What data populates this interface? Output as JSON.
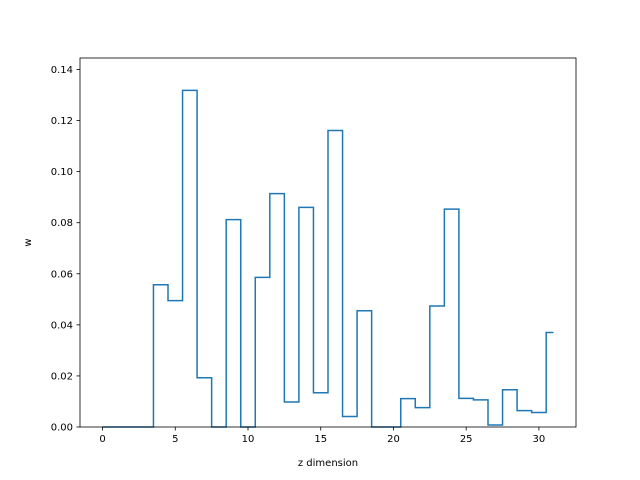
{
  "chart_data": {
    "type": "line",
    "style": "step",
    "title": "",
    "xlabel": "z dimension",
    "ylabel": "w",
    "xlim": [
      -1.55,
      32.55
    ],
    "ylim": [
      0,
      0.1445
    ],
    "xticks": [
      0,
      5,
      10,
      15,
      20,
      25,
      30
    ],
    "yticks": [
      0.0,
      0.02,
      0.04,
      0.06,
      0.08,
      0.1,
      0.12,
      0.14
    ],
    "xtick_labels": [
      "0",
      "5",
      "10",
      "15",
      "20",
      "25",
      "30"
    ],
    "ytick_labels": [
      "0.00",
      "0.02",
      "0.04",
      "0.06",
      "0.08",
      "0.10",
      "0.12",
      "0.14"
    ],
    "grid": false,
    "line_color": "#1f77b4",
    "series": [
      {
        "x": [
          0,
          1,
          2,
          3,
          4,
          5,
          6,
          7,
          8,
          9,
          10,
          11,
          12,
          13,
          14,
          15,
          16,
          17,
          18,
          19,
          20,
          21,
          22,
          23,
          24,
          25,
          26,
          27,
          28,
          29,
          30,
          31
        ],
        "values": [
          0.0,
          0.0,
          0.0,
          0.0,
          0.0557,
          0.0495,
          0.1318,
          0.0193,
          0.0,
          0.0812,
          0.0,
          0.0586,
          0.0914,
          0.0098,
          0.086,
          0.0134,
          0.1161,
          0.0041,
          0.0455,
          0.0,
          0.0,
          0.0111,
          0.0076,
          0.0474,
          0.0853,
          0.0112,
          0.0106,
          0.0008,
          0.0146,
          0.0064,
          0.0057,
          0.037
        ]
      }
    ]
  }
}
